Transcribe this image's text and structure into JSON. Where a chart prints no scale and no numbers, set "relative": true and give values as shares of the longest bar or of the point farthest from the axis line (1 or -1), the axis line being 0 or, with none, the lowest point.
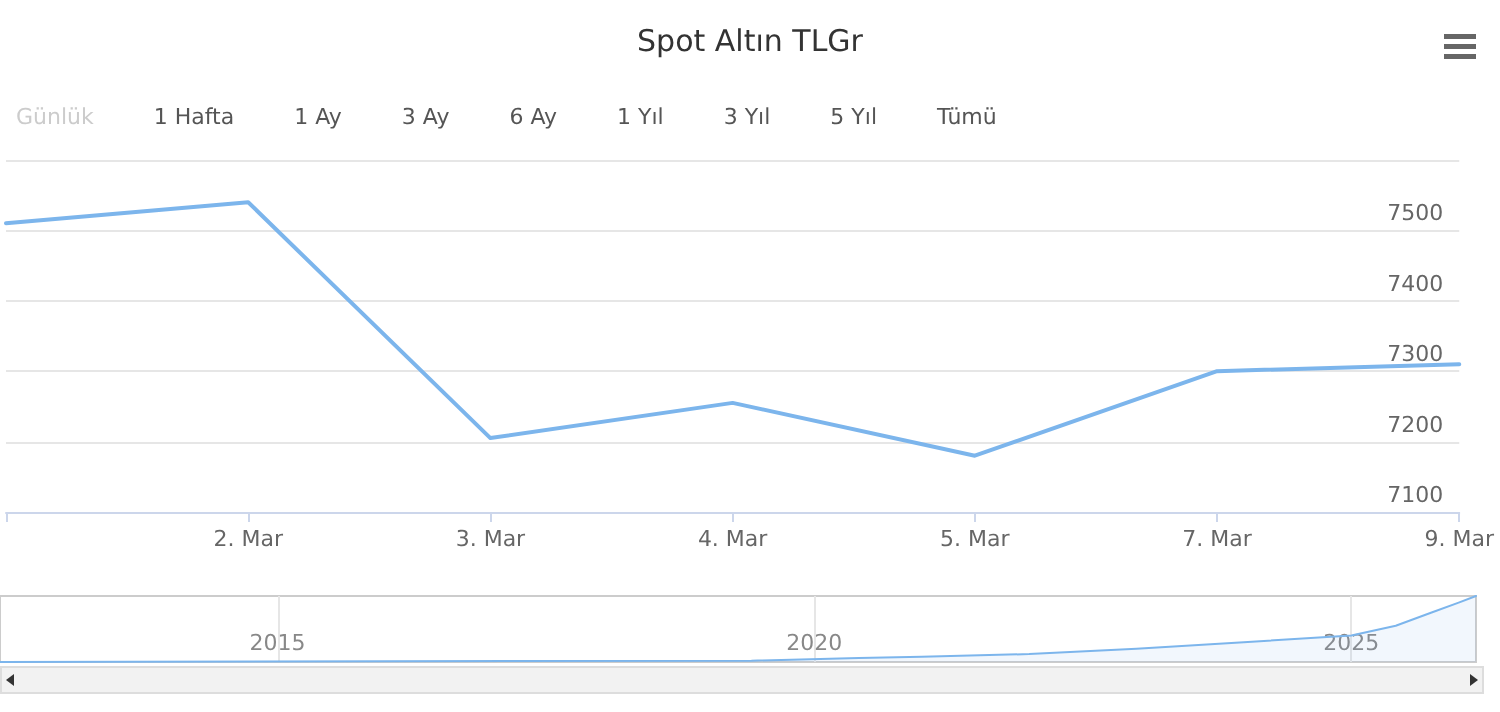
{
  "chart_data": [
    {
      "type": "line",
      "title": "Spot Altın TLGr",
      "annotations": [
        "Günlük",
        "1 Hafta",
        "1 Ay",
        "3 Ay",
        "6 Ay",
        "1 Yıl",
        "3 Yıl",
        "5 Yıl",
        "Tümü"
      ],
      "categories": [
        null,
        "2. Mar",
        "3. Mar",
        "4. Mar",
        "5. Mar",
        "7. Mar",
        "9. Mar"
      ],
      "series": [
        {
          "color": "#7cb5ec",
          "values": [
            7510,
            7540,
            7205,
            7255,
            7180,
            7300,
            7310
          ]
        }
      ],
      "ylim": [
        7100,
        7600
      ],
      "yticks": [
        7100,
        7200,
        7300,
        7400,
        7500,
        {
          "value": 7600,
          "label": null
        }
      ],
      "grid": "y",
      "marker": "none",
      "line_style": "solid"
    },
    {
      "type": "area",
      "relative": true,
      "x": [
        "2012-06",
        "2016",
        "2019-06",
        "2020-06",
        "2021",
        "2022",
        "2023",
        "2024",
        "2025",
        "2025-06",
        "2025-10",
        "2026-01",
        "2026-03"
      ],
      "series": [
        {
          "color": "#7cb5ec",
          "values": [
            0,
            0.01,
            0.02,
            0.06,
            0.08,
            0.12,
            0.2,
            0.3,
            0.4,
            0.55,
            0.75,
            0.9,
            1
          ]
        }
      ],
      "xlim": [
        "2012-06",
        "2026-03"
      ],
      "xticks": [
        "2015",
        "2020",
        "2025"
      ],
      "grid": "x"
    }
  ]
}
